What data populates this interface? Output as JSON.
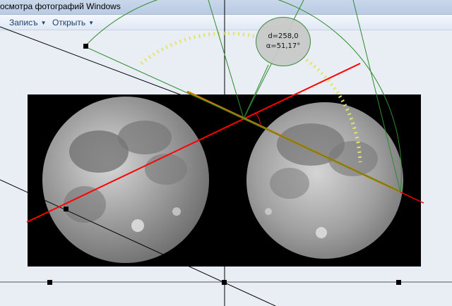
{
  "window": {
    "title": "осмотра фотографий Windows"
  },
  "menu": [
    {
      "label": "Записъ"
    },
    {
      "label": "Открыть"
    }
  ],
  "measurement": {
    "distance": "d=258,0",
    "angle": "α=51,17°"
  },
  "colors": {
    "guide_line": "#000000",
    "measure_line": "#ff0000",
    "protractor": "#2e8b2e",
    "ruler": "#c87a00",
    "protractor_ticks": "#e3e36a"
  }
}
